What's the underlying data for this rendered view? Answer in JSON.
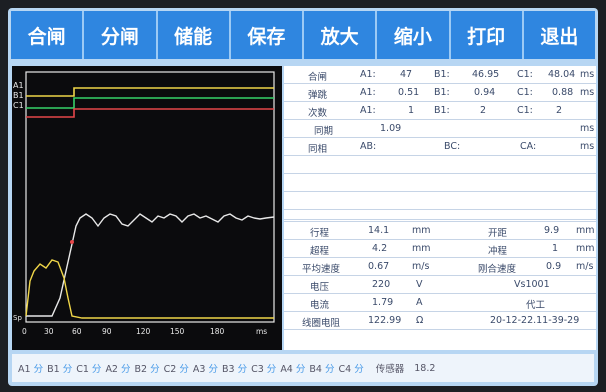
{
  "toolbar": {
    "buttons": [
      "合闸",
      "分闸",
      "储能",
      "保存",
      "放大",
      "缩小",
      "打印",
      "退出"
    ]
  },
  "oscilloscope": {
    "y_labels": [
      "A1",
      "B1",
      "C1",
      "",
      "",
      "",
      "",
      "",
      "",
      "",
      "",
      "Sp"
    ],
    "x_ticks": [
      "0",
      "30",
      "60",
      "90",
      "120",
      "150",
      "180"
    ],
    "x_unit": "ms",
    "colors": {
      "yellow": "#f0d648",
      "green": "#36d36a",
      "red": "#e6474a",
      "white": "#e8e8e8"
    }
  },
  "table_top": {
    "rows": [
      {
        "label": "合闸",
        "a_key": "A1:",
        "a_val": "47",
        "b_key": "B1:",
        "b_val": "46.95",
        "c_key": "C1:",
        "c_val": "48.04",
        "unit": "ms"
      },
      {
        "label": "弹跳",
        "a_key": "A1:",
        "a_val": "0.51",
        "b_key": "B1:",
        "b_val": "0.94",
        "c_key": "C1:",
        "c_val": "0.88",
        "unit": "ms"
      },
      {
        "label": "次数",
        "a_key": "A1:",
        "a_val": "1",
        "b_key": "B1:",
        "b_val": "2",
        "c_key": "C1:",
        "c_val": "2",
        "unit": ""
      },
      {
        "label": "同期",
        "a_key": "",
        "a_val": "1.09",
        "b_key": "",
        "b_val": "",
        "c_key": "",
        "c_val": "",
        "unit": "ms"
      },
      {
        "label": "同相",
        "a_key": "AB:",
        "a_val": "",
        "b_key": "BC:",
        "b_val": "",
        "c_key": "CA:",
        "c_val": "",
        "unit": "ms"
      }
    ]
  },
  "table_bottom": {
    "rows": [
      {
        "label": "行程",
        "val": "14.1",
        "unit": "mm",
        "label2": "开距",
        "val2": "9.9",
        "unit2": "mm"
      },
      {
        "label": "超程",
        "val": "4.2",
        "unit": "mm",
        "label2": "冲程",
        "val2": "1",
        "unit2": "mm"
      },
      {
        "label": "平均速度",
        "val": "0.67",
        "unit": "m/s",
        "label2": "刚合速度",
        "val2": "0.9",
        "unit2": "m/s"
      },
      {
        "label": "电压",
        "val": "220",
        "unit": "V",
        "info": "Vs1001"
      },
      {
        "label": "电流",
        "val": "1.79",
        "unit": "A",
        "info": "代工"
      },
      {
        "label": "线圈电阻",
        "val": "122.99",
        "unit": "Ω",
        "info": "20-12-22.11-39-29"
      }
    ]
  },
  "status": {
    "items": [
      {
        "k": "A1",
        "v": "分"
      },
      {
        "k": "B1",
        "v": "分"
      },
      {
        "k": "C1",
        "v": "分"
      },
      {
        "k": "A2",
        "v": "分"
      },
      {
        "k": "B2",
        "v": "分"
      },
      {
        "k": "C2",
        "v": "分"
      },
      {
        "k": "A3",
        "v": "分"
      },
      {
        "k": "B3",
        "v": "分"
      },
      {
        "k": "C3",
        "v": "分"
      },
      {
        "k": "A4",
        "v": "分"
      },
      {
        "k": "B4",
        "v": "分"
      },
      {
        "k": "C4",
        "v": "分"
      }
    ],
    "sensor_label": "传感器",
    "sensor_value": "18.2"
  }
}
